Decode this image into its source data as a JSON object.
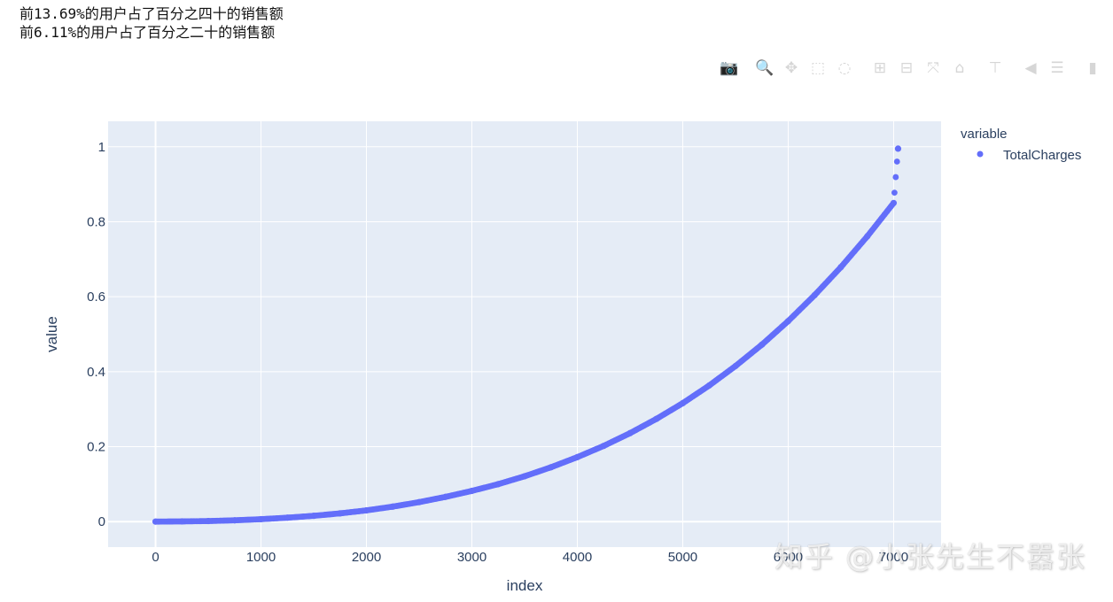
{
  "output_lines": [
    "前13.69%的用户占了百分之四十的销售额",
    "前6.11%的用户占了百分之二十的销售额"
  ],
  "modebar": {
    "buttons": [
      {
        "name": "camera-icon",
        "glyph": "📷"
      },
      {
        "name": "zoom-icon",
        "glyph": "🔍"
      },
      {
        "name": "pan-icon",
        "glyph": "✥"
      },
      {
        "name": "box-select-icon",
        "glyph": "⬚"
      },
      {
        "name": "lasso-select-icon",
        "glyph": "◌"
      },
      {
        "name": "zoom-in-icon",
        "glyph": "⊞"
      },
      {
        "name": "zoom-out-icon",
        "glyph": "⊟"
      },
      {
        "name": "autoscale-icon",
        "glyph": "⤧"
      },
      {
        "name": "home-icon",
        "glyph": "⌂"
      },
      {
        "name": "spike-lines-icon",
        "glyph": "⊤"
      },
      {
        "name": "hover-closest-icon",
        "glyph": "◀"
      },
      {
        "name": "hover-compare-icon",
        "glyph": "☰"
      },
      {
        "name": "plotly-logo-icon",
        "glyph": "▮"
      }
    ]
  },
  "watermark": "知乎 @小张先生不嚣张",
  "colors": {
    "plot_bg": "#e5ecf6",
    "grid": "#ffffff",
    "series": "#636efa",
    "text": "#2a3f5f"
  },
  "chart_data": {
    "type": "scatter",
    "xlabel": "index",
    "ylabel": "value",
    "legend_title": "variable",
    "legend_position": "top-right",
    "grid": true,
    "xlim": [
      -450,
      7450
    ],
    "ylim": [
      -0.068,
      1.068
    ],
    "x_ticks": [
      0,
      1000,
      2000,
      3000,
      4000,
      5000,
      6000,
      7000
    ],
    "y_ticks": [
      0,
      0.2,
      0.4,
      0.6,
      0.8,
      1
    ],
    "y_tick_labels": [
      "0",
      "0.2",
      "0.4",
      "0.6",
      "0.8",
      "1"
    ],
    "series": [
      {
        "name": "TotalCharges",
        "color": "#636efa",
        "x": [
          0,
          250,
          500,
          750,
          1000,
          1250,
          1500,
          1750,
          2000,
          2250,
          2500,
          2750,
          3000,
          3250,
          3500,
          3750,
          4000,
          4250,
          4500,
          4750,
          5000,
          5250,
          5500,
          5750,
          6000,
          6250,
          6500,
          6750,
          7000,
          7042
        ],
        "y": [
          0,
          0.0006,
          0.0015,
          0.0035,
          0.0065,
          0.0105,
          0.0155,
          0.022,
          0.03,
          0.04,
          0.052,
          0.066,
          0.082,
          0.1,
          0.121,
          0.145,
          0.172,
          0.202,
          0.236,
          0.274,
          0.316,
          0.363,
          0.415,
          0.472,
          0.535,
          0.604,
          0.679,
          0.761,
          0.85,
          0.995
        ]
      }
    ]
  }
}
